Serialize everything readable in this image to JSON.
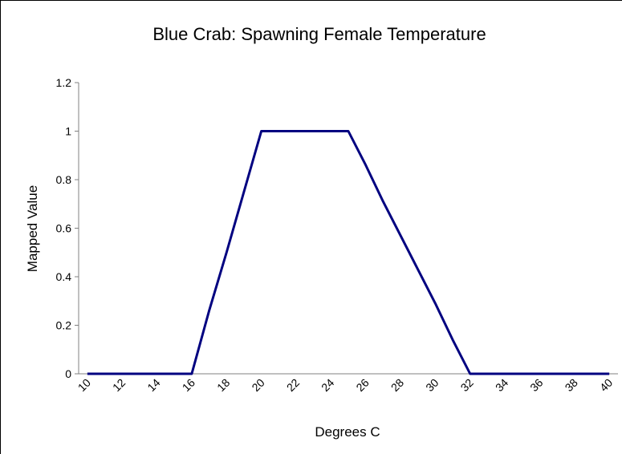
{
  "chart_data": {
    "type": "line",
    "title": "Blue Crab: Spawning Female Temperature",
    "x_label": "Degrees C",
    "y_label": "Mapped Value",
    "categories": [
      10,
      null,
      12,
      null,
      14,
      null,
      16,
      null,
      18,
      null,
      20,
      null,
      22,
      null,
      24,
      null,
      26,
      null,
      28,
      null,
      30,
      null,
      32,
      null,
      34,
      null,
      36,
      null,
      38,
      null,
      40
    ],
    "values": [
      0,
      0,
      0,
      0,
      0,
      0,
      0,
      0.26,
      0.5,
      0.75,
      1,
      1,
      1,
      1,
      1,
      1,
      0.86,
      0.71,
      0.57,
      0.43,
      0.29,
      0.14,
      0,
      0,
      0,
      0,
      0,
      0,
      0,
      0,
      0
    ],
    "color": "#000080",
    "ylim": [
      0,
      1.2
    ],
    "yticks": [
      0,
      0.2,
      0.4,
      0.6,
      0.8,
      1,
      1.2
    ]
  }
}
